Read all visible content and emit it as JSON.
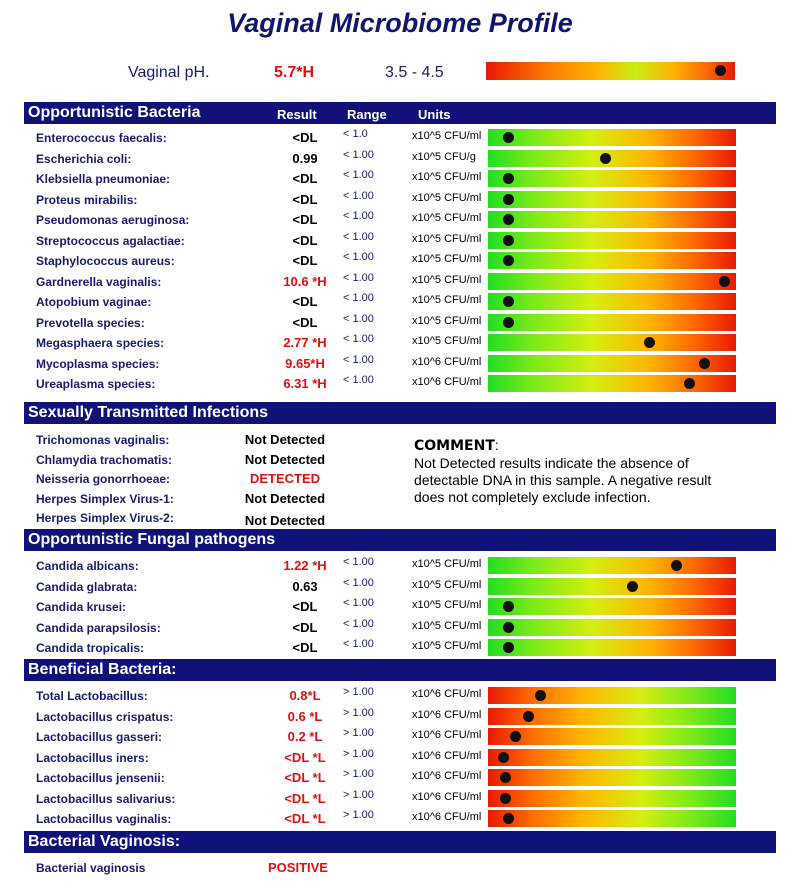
{
  "title": "Vaginal Microbiome Profile",
  "ph": {
    "label": "Vaginal pH.",
    "value": "5.7*H",
    "range": "3.5 - 4.5",
    "marker": 0.94
  },
  "headers": {
    "result": "Result",
    "range": "Range",
    "units": "Units"
  },
  "opportunistic": {
    "title": "Opportunistic Bacteria",
    "rows": [
      {
        "name": "Enterococcus faecalis:",
        "result": "<DL",
        "flag": false,
        "range": "< 1.0",
        "units": "x10^5 CFU/ml",
        "marker": 0.08
      },
      {
        "name": "Escherichia coli:",
        "result": "0.99",
        "flag": false,
        "range": "< 1.00",
        "units": "x10^5 CFU/g",
        "marker": 0.47
      },
      {
        "name": "Klebsiella pneumoniae:",
        "result": "<DL",
        "flag": false,
        "range": "< 1.00",
        "units": "x10^5 CFU/ml",
        "marker": 0.08
      },
      {
        "name": "Proteus mirabilis:",
        "result": "<DL",
        "flag": false,
        "range": "< 1.00",
        "units": "x10^5 CFU/ml",
        "marker": 0.08
      },
      {
        "name": "Pseudomonas aeruginosa:",
        "result": "<DL",
        "flag": false,
        "range": "< 1.00",
        "units": "x10^5 CFU/ml",
        "marker": 0.08
      },
      {
        "name": "Streptococcus agalactiae:",
        "result": "<DL",
        "flag": false,
        "range": "< 1.00",
        "units": "x10^5 CFU/ml",
        "marker": 0.08
      },
      {
        "name": "Staphylococcus aureus:",
        "result": "<DL",
        "flag": false,
        "range": "< 1.00",
        "units": "x10^5 CFU/ml",
        "marker": 0.08
      },
      {
        "name": "Gardnerella vaginalis:",
        "result": "10.6 *H",
        "flag": true,
        "range": "< 1.00",
        "units": "x10^5 CFU/ml",
        "marker": 0.95
      },
      {
        "name": "Atopobium vaginae:",
        "result": "<DL",
        "flag": false,
        "range": "< 1.00",
        "units": "x10^5 CFU/ml",
        "marker": 0.08
      },
      {
        "name": "Prevotella species:",
        "result": "<DL",
        "flag": false,
        "range": "< 1.00",
        "units": "x10^5 CFU/ml",
        "marker": 0.08
      },
      {
        "name": "Megasphaera species:",
        "result": "2.77 *H",
        "flag": true,
        "range": "< 1.00",
        "units": "x10^5 CFU/ml",
        "marker": 0.65
      },
      {
        "name": "Mycoplasma species:",
        "result": "9.65*H",
        "flag": true,
        "range": "< 1.00",
        "units": "x10^6 CFU/ml",
        "marker": 0.87
      },
      {
        "name": "Ureaplasma species:",
        "result": "6.31 *H",
        "flag": true,
        "range": "< 1.00",
        "units": "x10^6 CFU/ml",
        "marker": 0.81
      }
    ]
  },
  "sti": {
    "title": "Sexually Transmitted Infections",
    "rows": [
      {
        "name": "Trichomonas vaginalis:",
        "result": "Not Detected",
        "flag": false
      },
      {
        "name": "Chlamydia trachomatis:",
        "result": "Not Detected",
        "flag": false
      },
      {
        "name": "Neisseria gonorrhoeae:",
        "result": "DETECTED",
        "flag": true
      },
      {
        "name": "Herpes Simplex Virus-1:",
        "result": "Not Detected",
        "flag": false
      },
      {
        "name": "Herpes Simplex Virus-2:",
        "result": "Not Detected",
        "flag": false
      }
    ],
    "comment_label": "COMMENT",
    "comment_text": "Not Detected results indicate the absence of detectable DNA in this sample. A negative result does not completely exclude infection."
  },
  "fungal": {
    "title": "Opportunistic Fungal pathogens",
    "rows": [
      {
        "name": "Candida albicans:",
        "result": "1.22 *H",
        "flag": true,
        "range": "< 1.00",
        "units": "x10^5 CFU/ml",
        "marker": 0.76
      },
      {
        "name": "Candida glabrata:",
        "result": "0.63",
        "flag": false,
        "range": "< 1.00",
        "units": "x10^5 CFU/ml",
        "marker": 0.58
      },
      {
        "name": "Candida krusei:",
        "result": "<DL",
        "flag": false,
        "range": "< 1.00",
        "units": "x10^5 CFU/ml",
        "marker": 0.08
      },
      {
        "name": "Candida parapsilosis:",
        "result": "<DL",
        "flag": false,
        "range": "< 1.00",
        "units": "x10^5 CFU/ml",
        "marker": 0.08
      },
      {
        "name": "Candida tropicalis:",
        "result": "<DL",
        "flag": false,
        "range": "< 1.00",
        "units": "x10^5 CFU/ml",
        "marker": 0.08
      }
    ]
  },
  "beneficial": {
    "title": "Beneficial Bacteria:",
    "rows": [
      {
        "name": "Total Lactobacillus:",
        "result": "0.8*L",
        "flag": true,
        "range": "> 1.00",
        "units": "x10^6 CFU/ml",
        "marker": 0.21
      },
      {
        "name": "Lactobacillus crispatus:",
        "result": "0.6 *L",
        "flag": true,
        "range": "> 1.00",
        "units": "x10^6 CFU/ml",
        "marker": 0.16
      },
      {
        "name": "Lactobacillus gasseri:",
        "result": "0.2 *L",
        "flag": true,
        "range": "> 1.00",
        "units": "x10^6 CFU/ml",
        "marker": 0.11
      },
      {
        "name": "Lactobacillus iners:",
        "result": "<DL *L",
        "flag": true,
        "range": "> 1.00",
        "units": "x10^6 CFU/ml",
        "marker": 0.06
      },
      {
        "name": "Lactobacillus jensenii:",
        "result": "<DL *L",
        "flag": true,
        "range": "> 1.00",
        "units": "x10^6 CFU/ml",
        "marker": 0.07
      },
      {
        "name": "Lactobacillus salivarius:",
        "result": "<DL *L",
        "flag": true,
        "range": "> 1.00",
        "units": "x10^6 CFU/ml",
        "marker": 0.07
      },
      {
        "name": "Lactobacillus vaginalis:",
        "result": "<DL *L",
        "flag": true,
        "range": "> 1.00",
        "units": "x10^6 CFU/ml",
        "marker": 0.08
      }
    ]
  },
  "bv": {
    "title": "Bacterial Vaginosis:",
    "name": "Bacterial vaginosis",
    "result": "POSITIVE"
  }
}
